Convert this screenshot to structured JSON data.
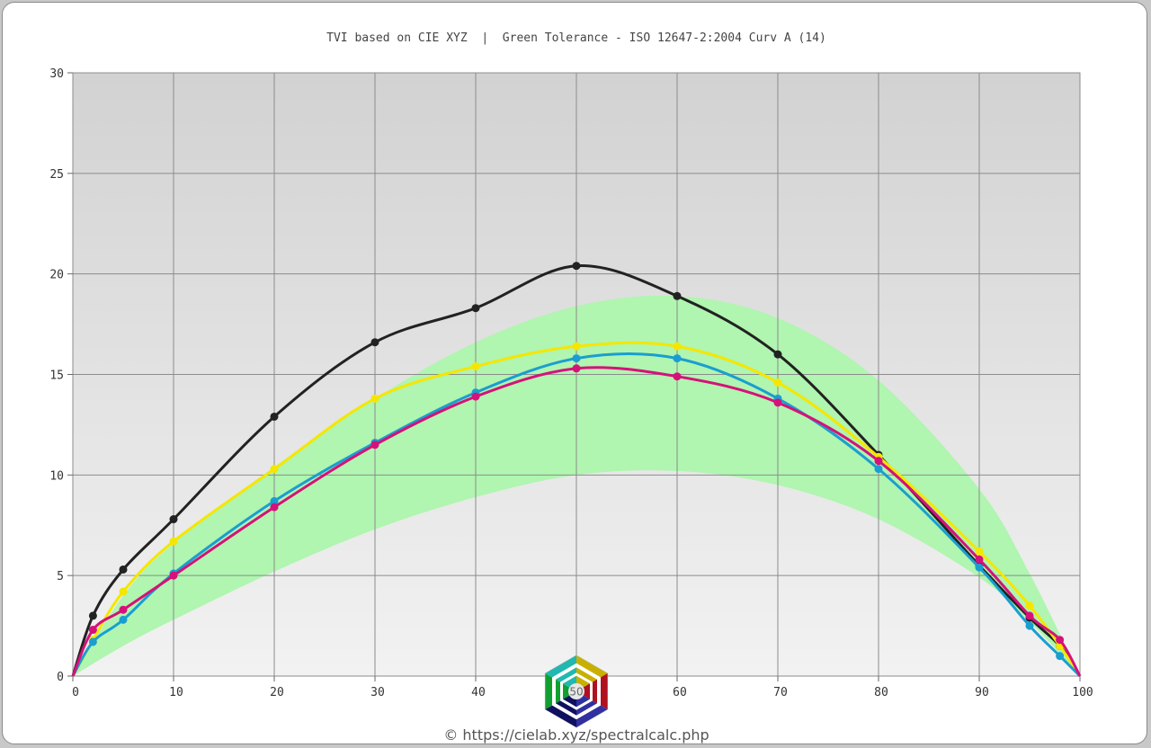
{
  "chart_data": {
    "type": "line",
    "title": "TVI based on CIE XYZ  |  Green Tolerance - ISO 12647-2:2004 Curv A (14)",
    "xlim": [
      0,
      100
    ],
    "ylim": [
      0,
      30
    ],
    "x_ticks": [
      "0",
      "10",
      "20",
      "30",
      "40",
      "50",
      "60",
      "70",
      "80",
      "90",
      "100"
    ],
    "y_ticks": [
      "0",
      "5",
      "10",
      "15",
      "20",
      "25",
      "30"
    ],
    "grid": true,
    "tolerance_band": {
      "color": "#b0f5b0",
      "x": [
        0,
        5,
        10,
        20,
        30,
        40,
        50,
        60,
        70,
        80,
        90,
        95,
        100
      ],
      "upper": [
        0,
        4.0,
        6.6,
        10.4,
        13.8,
        16.6,
        18.4,
        18.9,
        17.8,
        14.7,
        9.3,
        5.1,
        0
      ],
      "lower": [
        0,
        1.5,
        2.8,
        5.2,
        7.3,
        8.9,
        10.0,
        10.2,
        9.5,
        7.8,
        4.9,
        2.7,
        0
      ]
    },
    "series": [
      {
        "color": "#222222",
        "x": [
          0,
          2,
          5,
          10,
          20,
          30,
          40,
          50,
          60,
          70,
          80,
          90,
          95,
          98,
          100
        ],
        "y": [
          0,
          3.0,
          5.3,
          7.8,
          12.9,
          16.6,
          18.3,
          20.4,
          18.9,
          16.0,
          11.0,
          5.5,
          2.9,
          1.5,
          0
        ]
      },
      {
        "color": "#f5e600",
        "x": [
          0,
          2,
          5,
          10,
          20,
          30,
          40,
          50,
          60,
          70,
          80,
          90,
          95,
          98,
          100
        ],
        "y": [
          0,
          1.8,
          4.2,
          6.7,
          10.3,
          13.8,
          15.4,
          16.4,
          16.4,
          14.6,
          10.9,
          6.2,
          3.5,
          1.5,
          0
        ]
      },
      {
        "color": "#1a9ed0",
        "x": [
          0,
          2,
          5,
          10,
          20,
          30,
          40,
          50,
          60,
          70,
          80,
          90,
          95,
          98,
          100
        ],
        "y": [
          0,
          1.7,
          2.8,
          5.1,
          8.7,
          11.6,
          14.1,
          15.8,
          15.8,
          13.8,
          10.3,
          5.4,
          2.5,
          1.0,
          0
        ]
      },
      {
        "color": "#d6117a",
        "x": [
          0,
          2,
          5,
          10,
          20,
          30,
          40,
          50,
          60,
          70,
          80,
          90,
          95,
          98,
          100
        ],
        "y": [
          0,
          2.3,
          3.3,
          5.0,
          8.4,
          11.5,
          13.9,
          15.3,
          14.9,
          13.6,
          10.7,
          5.8,
          3.0,
          1.8,
          0
        ]
      }
    ]
  },
  "watermark": {
    "label": "50"
  },
  "credit": "© https://cielab.xyz/spectralcalc.php"
}
